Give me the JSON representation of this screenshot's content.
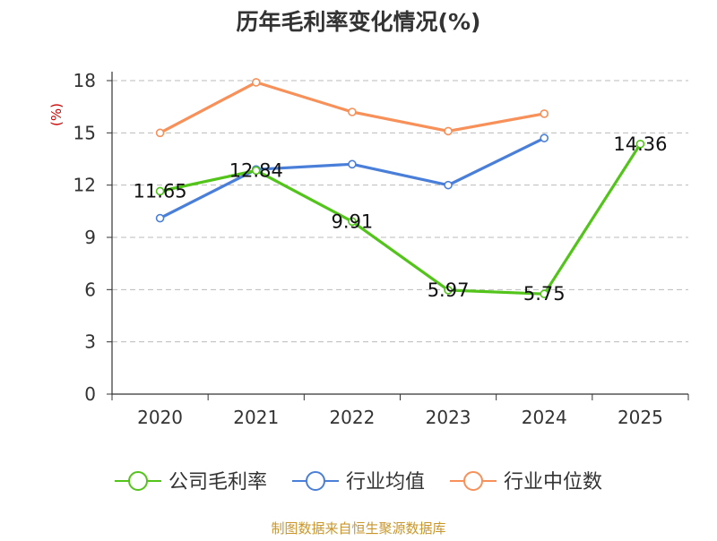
{
  "chart_data": {
    "type": "line",
    "title": "历年毛利率变化情况(%)",
    "ylabel": "(%)",
    "xlabel": "",
    "categories": [
      "2020",
      "2021",
      "2022",
      "2023",
      "2024",
      "2025"
    ],
    "ylim": [
      0,
      18
    ],
    "yticks": [
      0,
      3,
      6,
      9,
      12,
      15,
      18
    ],
    "grid": "horizontal-dashed",
    "legend_position": "bottom",
    "series": [
      {
        "name": "公司毛利率",
        "color": "#52c41a",
        "values": [
          11.65,
          12.84,
          9.91,
          5.97,
          5.75,
          14.36
        ],
        "labels": [
          "11.65",
          "12.84",
          "9.91",
          "5.97",
          "5.75",
          "14.36"
        ]
      },
      {
        "name": "行业均值",
        "color": "#4a7fd9",
        "values": [
          10.1,
          12.9,
          13.2,
          12.0,
          14.7,
          null
        ]
      },
      {
        "name": "行业中位数",
        "color": "#f79059",
        "values": [
          15.0,
          17.9,
          16.2,
          15.1,
          16.1,
          null
        ]
      }
    ]
  },
  "footer": {
    "source": "制图数据来自恒生聚源数据库"
  }
}
